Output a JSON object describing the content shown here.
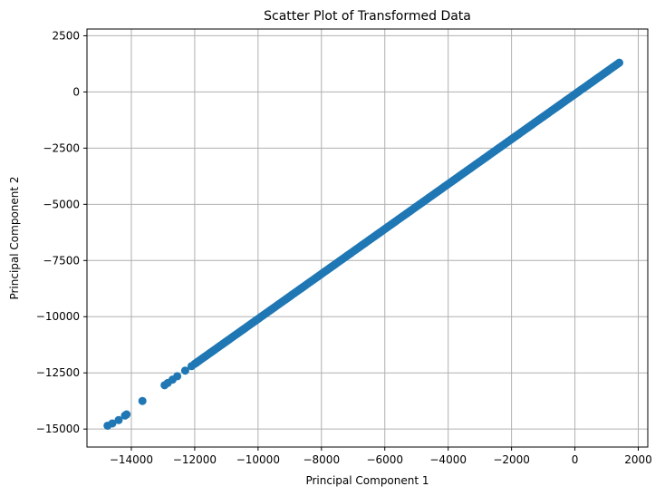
{
  "chart_data": {
    "type": "scatter",
    "title": "Scatter Plot of Transformed Data",
    "xlabel": "Principal Component 1",
    "ylabel": "Principal Component 2",
    "xlim": [
      -15400,
      2300
    ],
    "ylim": [
      -15800,
      2800
    ],
    "xticks": [
      -14000,
      -12000,
      -10000,
      -8000,
      -6000,
      -4000,
      -2000,
      0,
      2000
    ],
    "xtick_labels": [
      "−14000",
      "−12000",
      "−10000",
      "−8000",
      "−6000",
      "−4000",
      "−2000",
      "0",
      "2000"
    ],
    "yticks": [
      2500,
      0,
      -2500,
      -5000,
      -7500,
      -10000,
      -12500,
      -15000
    ],
    "ytick_labels": [
      "2500",
      "0",
      "−2500",
      "−5000",
      "−7500",
      "−10000",
      "−12500",
      "−15000"
    ],
    "grid": true,
    "marker_color": "#1f77b4",
    "series": [
      {
        "isolated_points": [
          [
            -14750,
            -14850
          ],
          [
            -14600,
            -14750
          ],
          [
            -14400,
            -14600
          ],
          [
            -14200,
            -14400
          ],
          [
            -14150,
            -14350
          ],
          [
            -13650,
            -13750
          ],
          [
            -12950,
            -13050
          ],
          [
            -12850,
            -12950
          ],
          [
            -12700,
            -12800
          ],
          [
            -12550,
            -12650
          ],
          [
            -12300,
            -12400
          ],
          [
            -12100,
            -12200
          ]
        ],
        "dense_range": {
          "x_from": -12000,
          "x_to": 1400,
          "slope": 1.0,
          "intercept": -100,
          "count": 240
        },
        "values_note_free": true
      }
    ]
  }
}
